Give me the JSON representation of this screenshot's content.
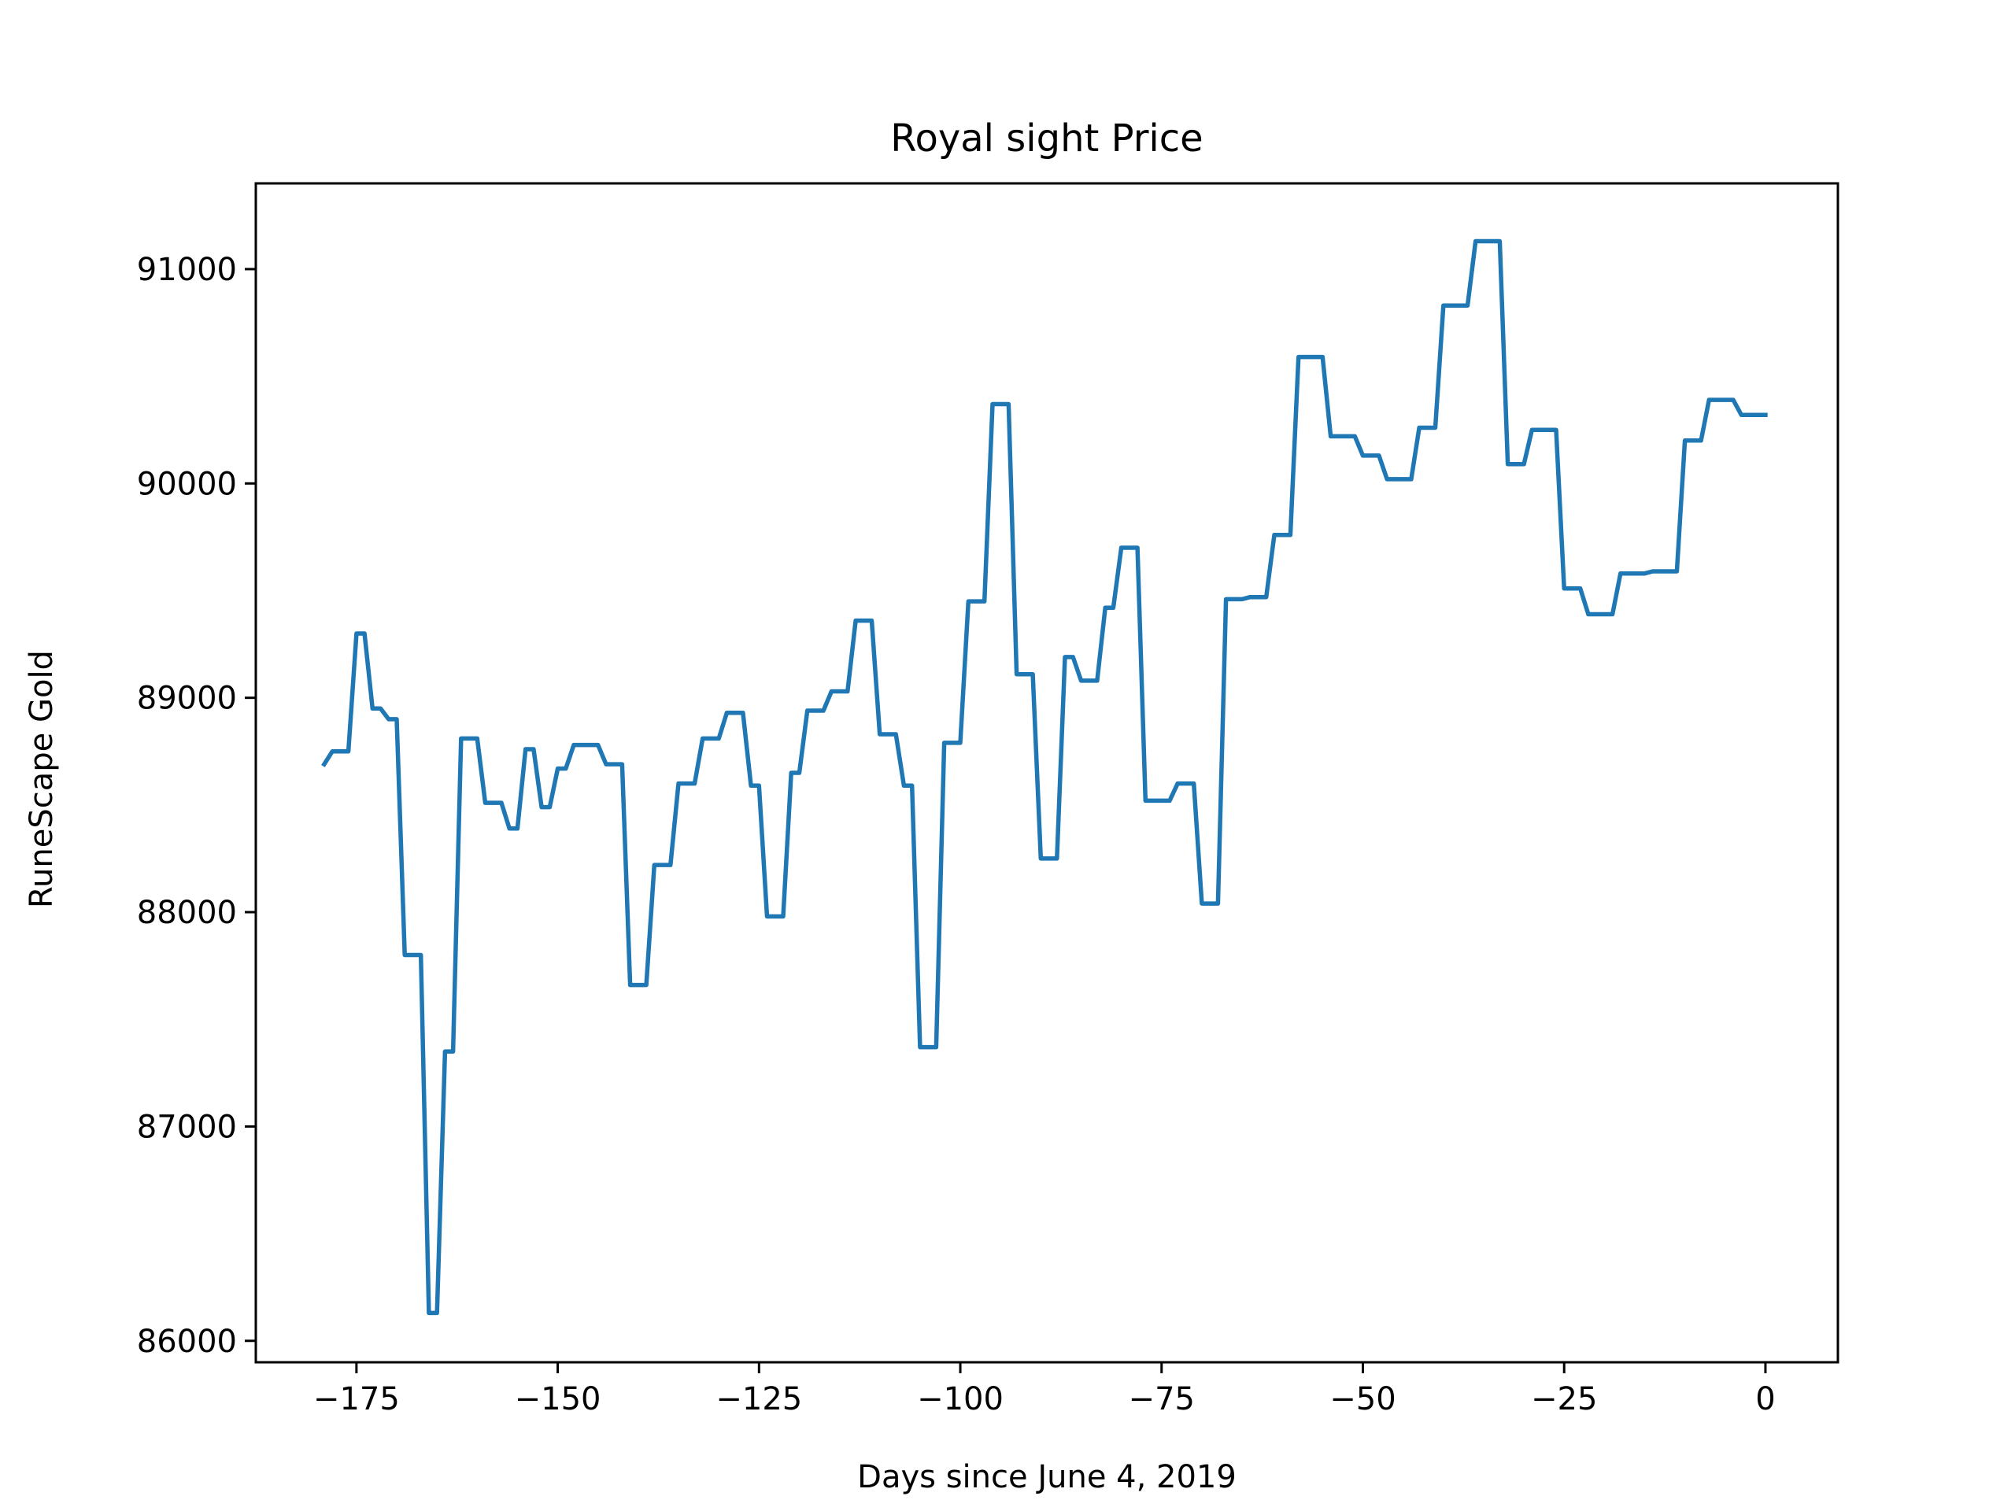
{
  "chart_data": {
    "type": "line",
    "title": "Royal sight Price",
    "xlabel": "Days since June 4, 2019",
    "ylabel": "RuneScape Gold",
    "xlim": [
      -187.5,
      9
    ],
    "ylim": [
      85900,
      91400
    ],
    "grid": false,
    "legend": "none",
    "x_ticks": [
      -175,
      -150,
      -125,
      -100,
      -75,
      -50,
      -25,
      0
    ],
    "x_tick_labels": [
      "−175",
      "−150",
      "−125",
      "−100",
      "−75",
      "−50",
      "−25",
      "0"
    ],
    "y_ticks": [
      86000,
      87000,
      88000,
      89000,
      90000,
      91000
    ],
    "y_tick_labels": [
      "86000",
      "87000",
      "88000",
      "89000",
      "90000",
      "91000"
    ],
    "series": [
      {
        "color": "#1f77b4",
        "points": [
          [
            -179,
            88690
          ],
          [
            -178,
            88750
          ],
          [
            -177,
            88750
          ],
          [
            -176,
            88750
          ],
          [
            -175,
            89300
          ],
          [
            -174,
            89300
          ],
          [
            -173,
            88950
          ],
          [
            -172,
            88950
          ],
          [
            -171,
            88900
          ],
          [
            -170,
            88900
          ],
          [
            -169,
            87800
          ],
          [
            -168,
            87800
          ],
          [
            -167,
            87800
          ],
          [
            -166,
            86130
          ],
          [
            -165,
            86130
          ],
          [
            -164,
            87350
          ],
          [
            -163,
            87350
          ],
          [
            -162,
            88810
          ],
          [
            -161,
            88810
          ],
          [
            -160,
            88810
          ],
          [
            -159,
            88510
          ],
          [
            -158,
            88510
          ],
          [
            -157,
            88510
          ],
          [
            -156,
            88390
          ],
          [
            -155,
            88390
          ],
          [
            -154,
            88760
          ],
          [
            -153,
            88760
          ],
          [
            -152,
            88490
          ],
          [
            -151,
            88490
          ],
          [
            -150,
            88670
          ],
          [
            -149,
            88670
          ],
          [
            -148,
            88780
          ],
          [
            -147,
            88780
          ],
          [
            -146,
            88780
          ],
          [
            -145,
            88780
          ],
          [
            -144,
            88690
          ],
          [
            -143,
            88690
          ],
          [
            -142,
            88690
          ],
          [
            -141,
            87660
          ],
          [
            -140,
            87660
          ],
          [
            -139,
            87660
          ],
          [
            -138,
            88220
          ],
          [
            -137,
            88220
          ],
          [
            -136,
            88220
          ],
          [
            -135,
            88600
          ],
          [
            -134,
            88600
          ],
          [
            -133,
            88600
          ],
          [
            -132,
            88810
          ],
          [
            -131,
            88810
          ],
          [
            -130,
            88810
          ],
          [
            -129,
            88930
          ],
          [
            -128,
            88930
          ],
          [
            -127,
            88930
          ],
          [
            -126,
            88590
          ],
          [
            -125,
            88590
          ],
          [
            -124,
            87980
          ],
          [
            -123,
            87980
          ],
          [
            -122,
            87980
          ],
          [
            -121,
            88650
          ],
          [
            -120,
            88650
          ],
          [
            -119,
            88940
          ],
          [
            -118,
            88940
          ],
          [
            -117,
            88940
          ],
          [
            -116,
            89030
          ],
          [
            -115,
            89030
          ],
          [
            -114,
            89030
          ],
          [
            -113,
            89360
          ],
          [
            -112,
            89360
          ],
          [
            -111,
            89360
          ],
          [
            -110,
            88830
          ],
          [
            -109,
            88830
          ],
          [
            -108,
            88830
          ],
          [
            -107,
            88590
          ],
          [
            -106,
            88590
          ],
          [
            -105,
            87370
          ],
          [
            -104,
            87370
          ],
          [
            -103,
            87370
          ],
          [
            -102,
            88790
          ],
          [
            -101,
            88790
          ],
          [
            -100,
            88790
          ],
          [
            -99,
            89450
          ],
          [
            -98,
            89450
          ],
          [
            -97,
            89450
          ],
          [
            -96,
            90370
          ],
          [
            -95,
            90370
          ],
          [
            -94,
            90370
          ],
          [
            -93,
            89110
          ],
          [
            -92,
            89110
          ],
          [
            -91,
            89110
          ],
          [
            -90,
            88250
          ],
          [
            -89,
            88250
          ],
          [
            -88,
            88250
          ],
          [
            -87,
            89190
          ],
          [
            -86,
            89190
          ],
          [
            -85,
            89080
          ],
          [
            -84,
            89080
          ],
          [
            -83,
            89080
          ],
          [
            -82,
            89420
          ],
          [
            -81,
            89420
          ],
          [
            -80,
            89700
          ],
          [
            -79,
            89700
          ],
          [
            -78,
            89700
          ],
          [
            -77,
            88520
          ],
          [
            -76,
            88520
          ],
          [
            -75,
            88520
          ],
          [
            -74,
            88520
          ],
          [
            -73,
            88600
          ],
          [
            -72,
            88600
          ],
          [
            -71,
            88600
          ],
          [
            -70,
            88040
          ],
          [
            -69,
            88040
          ],
          [
            -68,
            88040
          ],
          [
            -67,
            89460
          ],
          [
            -66,
            89460
          ],
          [
            -65,
            89460
          ],
          [
            -64,
            89470
          ],
          [
            -63,
            89470
          ],
          [
            -62,
            89470
          ],
          [
            -61,
            89760
          ],
          [
            -60,
            89760
          ],
          [
            -59,
            89760
          ],
          [
            -58,
            90590
          ],
          [
            -57,
            90590
          ],
          [
            -56,
            90590
          ],
          [
            -55,
            90590
          ],
          [
            -54,
            90220
          ],
          [
            -53,
            90220
          ],
          [
            -52,
            90220
          ],
          [
            -51,
            90220
          ],
          [
            -50,
            90130
          ],
          [
            -49,
            90130
          ],
          [
            -48,
            90130
          ],
          [
            -47,
            90020
          ],
          [
            -46,
            90020
          ],
          [
            -45,
            90020
          ],
          [
            -44,
            90020
          ],
          [
            -43,
            90260
          ],
          [
            -42,
            90260
          ],
          [
            -41,
            90260
          ],
          [
            -40,
            90830
          ],
          [
            -39,
            90830
          ],
          [
            -38,
            90830
          ],
          [
            -37,
            90830
          ],
          [
            -36,
            91130
          ],
          [
            -35,
            91130
          ],
          [
            -34,
            91130
          ],
          [
            -33,
            91130
          ],
          [
            -32,
            90090
          ],
          [
            -31,
            90090
          ],
          [
            -30,
            90090
          ],
          [
            -29,
            90250
          ],
          [
            -28,
            90250
          ],
          [
            -27,
            90250
          ],
          [
            -26,
            90250
          ],
          [
            -25,
            89510
          ],
          [
            -24,
            89510
          ],
          [
            -23,
            89510
          ],
          [
            -22,
            89390
          ],
          [
            -21,
            89390
          ],
          [
            -20,
            89390
          ],
          [
            -19,
            89390
          ],
          [
            -18,
            89580
          ],
          [
            -17,
            89580
          ],
          [
            -16,
            89580
          ],
          [
            -15,
            89580
          ],
          [
            -14,
            89590
          ],
          [
            -13,
            89590
          ],
          [
            -12,
            89590
          ],
          [
            -11,
            89590
          ],
          [
            -10,
            90200
          ],
          [
            -9,
            90200
          ],
          [
            -8,
            90200
          ],
          [
            -7,
            90390
          ],
          [
            -6,
            90390
          ],
          [
            -5,
            90390
          ],
          [
            -4,
            90390
          ],
          [
            -3,
            90320
          ],
          [
            -2,
            90320
          ],
          [
            -1,
            90320
          ],
          [
            0,
            90320
          ]
        ]
      }
    ]
  }
}
